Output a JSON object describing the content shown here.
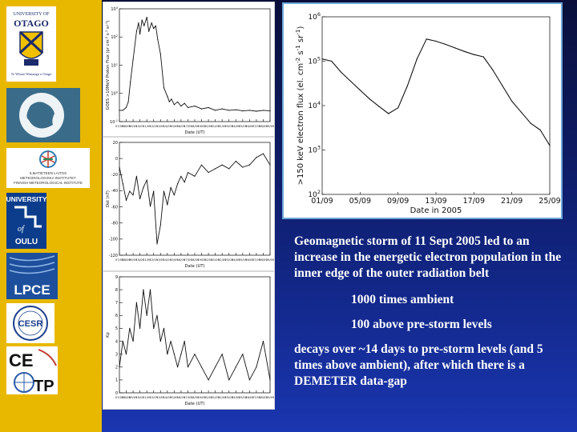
{
  "logos": {
    "otago_top": "UNIVERSITY OF",
    "otago_name": "OTAGO",
    "otago_motto": "Te Whare Wananga o Otago",
    "fmi_line1": "ILMATIETEEN LAITOS",
    "fmi_line2": "METEOROLOGISKA INSTITUTET",
    "fmi_line3": "FINNISH METEOROLOGICAL INSTITUTE",
    "oulu_top": "UNIVERSITY",
    "oulu_of": "of",
    "oulu_name": "OULU",
    "lpce": "LPCE",
    "cesr": "CESR",
    "cetp_ce": "CE",
    "cetp_tp": "TP"
  },
  "colors": {
    "sidebar": "#e8b800",
    "text": "#ffffff",
    "line": "#111111"
  },
  "text": {
    "para1": "Geomagnetic storm of 11 Sept 2005 led to an increase in the energetic electron population in the inner edge of the outer radiation belt",
    "item1": "1000 times ambient",
    "item2": "100 above pre-storm levels",
    "para2": "decays over ~14 days to pre-storm levels (and 5 times above ambient), after which there is a DEMETER data-gap"
  },
  "chart_data": [
    {
      "type": "line",
      "scale": "log",
      "ylabel": "GOES >10MeV Proton Flux (pr cm^-2 s^-1 sr^-1)",
      "xlabel": "Date (UT)",
      "xticks": [
        "07/09",
        "08/09",
        "09/09",
        "10/09",
        "11/09",
        "12/09",
        "13/09",
        "14/09",
        "15/09",
        "16/09",
        "17/09",
        "18/09",
        "19/09",
        "20/09",
        "21/09",
        "22/09",
        "23/09",
        "24/09",
        "25/09",
        "26/09",
        "27/09",
        "28/09",
        "29/09"
      ],
      "yticks": [
        "10^3",
        "10^2",
        "10^1",
        "10^0",
        "10^-1"
      ],
      "ylim": [
        -1,
        3
      ],
      "x": [
        0,
        0.5,
        1,
        1.3,
        1.6,
        2,
        2.5,
        2.8,
        3,
        3.3,
        3.6,
        4,
        4.3,
        4.7,
        5,
        5.3,
        5.6,
        6,
        6.5,
        7,
        7.3,
        7.6,
        8,
        8.5,
        9,
        9.5,
        10,
        11,
        12,
        13,
        14,
        15,
        16,
        17,
        18,
        19,
        20,
        21,
        22
      ],
      "y": [
        -0.6,
        -0.6,
        -0.5,
        -0.3,
        0.4,
        1.2,
        2.2,
        2.5,
        2.1,
        2.6,
        2.4,
        2.7,
        2.2,
        2.5,
        2.3,
        2.4,
        1.9,
        1.4,
        0.2,
        -0.1,
        -0.3,
        -0.2,
        -0.4,
        -0.3,
        -0.45,
        -0.35,
        -0.5,
        -0.45,
        -0.55,
        -0.5,
        -0.6,
        -0.55,
        -0.6,
        -0.58,
        -0.62,
        -0.6,
        -0.63,
        -0.6,
        -0.62
      ]
    },
    {
      "type": "line",
      "ylabel": "Dst (nT)",
      "xlabel": "Date (UT)",
      "xticks": [
        "07/09",
        "08/09",
        "09/09",
        "10/09",
        "11/09",
        "12/09",
        "13/09",
        "14/09",
        "15/09",
        "16/09",
        "17/09",
        "18/09",
        "19/09",
        "20/09",
        "21/09",
        "22/09",
        "23/09",
        "24/09",
        "25/09",
        "26/09",
        "27/09",
        "28/09",
        "29/09"
      ],
      "yticks": [
        "20",
        "0",
        "-20",
        "-40",
        "-60",
        "-80",
        "-100",
        "-120"
      ],
      "ylim": [
        -125,
        25
      ],
      "x": [
        0,
        0.5,
        1,
        1.5,
        2,
        2.5,
        3,
        3.5,
        4,
        4.5,
        5,
        5.5,
        6,
        6.5,
        7,
        7.5,
        8,
        8.5,
        9,
        9.5,
        10,
        11,
        12,
        13,
        14,
        15,
        16,
        17,
        18,
        19,
        20,
        21,
        22
      ],
      "y": [
        -8,
        -30,
        -52,
        -40,
        -45,
        -20,
        -50,
        -35,
        -25,
        -60,
        -40,
        -110,
        -85,
        -40,
        -58,
        -35,
        -45,
        -30,
        -20,
        -28,
        -15,
        -20,
        -5,
        -15,
        -10,
        -5,
        -10,
        0,
        -8,
        -5,
        5,
        10,
        -5
      ]
    },
    {
      "type": "line",
      "ylabel": "Kp",
      "xlabel": "Date (UT)",
      "xticks": [
        "07/09",
        "08/09",
        "09/09",
        "10/09",
        "11/09",
        "12/09",
        "13/09",
        "14/09",
        "15/09",
        "16/09",
        "17/09",
        "18/09",
        "19/09",
        "20/09",
        "21/09",
        "22/09",
        "23/09",
        "24/09",
        "25/09",
        "26/09",
        "27/09",
        "28/09",
        "29/09"
      ],
      "yticks": [
        "9",
        "8",
        "7",
        "6",
        "5",
        "4",
        "3",
        "2",
        "1",
        "0"
      ],
      "ylim": [
        0,
        9
      ],
      "x": [
        0,
        0.5,
        1,
        1.5,
        2,
        2.5,
        3,
        3.5,
        4,
        4.5,
        5,
        5.5,
        6,
        6.5,
        7,
        7.5,
        8,
        8.5,
        9,
        9.5,
        10,
        11,
        12,
        13,
        14,
        15,
        16,
        17,
        18,
        19,
        20,
        21,
        22
      ],
      "y": [
        2,
        4,
        3,
        5,
        4,
        7,
        5,
        8,
        6,
        8,
        5,
        6,
        4,
        5,
        3,
        4,
        3,
        2,
        3,
        4,
        2,
        3,
        2,
        1,
        2,
        3,
        1,
        2,
        3,
        1,
        2,
        4,
        1
      ]
    },
    {
      "type": "line",
      "scale": "log",
      "ylabel": ">150 keV electron flux (el. cm^-2 s^-1 sr^-1)",
      "xlabel": "Date in 2005",
      "xticks": [
        "01/09",
        "05/09",
        "09/09",
        "13/09",
        "17/09",
        "21/09",
        "25/09"
      ],
      "yticks": [
        "10^6",
        "10^5",
        "10^4",
        "10^3",
        "10^2"
      ],
      "ylim": [
        2,
        6
      ],
      "x": [
        1,
        2,
        3,
        4,
        5,
        6,
        7,
        8,
        9,
        10,
        11,
        12,
        13,
        14,
        15,
        16,
        17,
        18,
        19,
        20,
        21,
        22,
        23,
        24,
        25
      ],
      "y": [
        5.05,
        5.0,
        4.75,
        4.55,
        4.35,
        4.15,
        3.98,
        3.82,
        3.95,
        4.45,
        5.05,
        5.5,
        5.45,
        5.38,
        5.3,
        5.22,
        5.15,
        5.1,
        4.8,
        4.45,
        4.1,
        3.85,
        3.6,
        3.45,
        3.1
      ]
    }
  ]
}
